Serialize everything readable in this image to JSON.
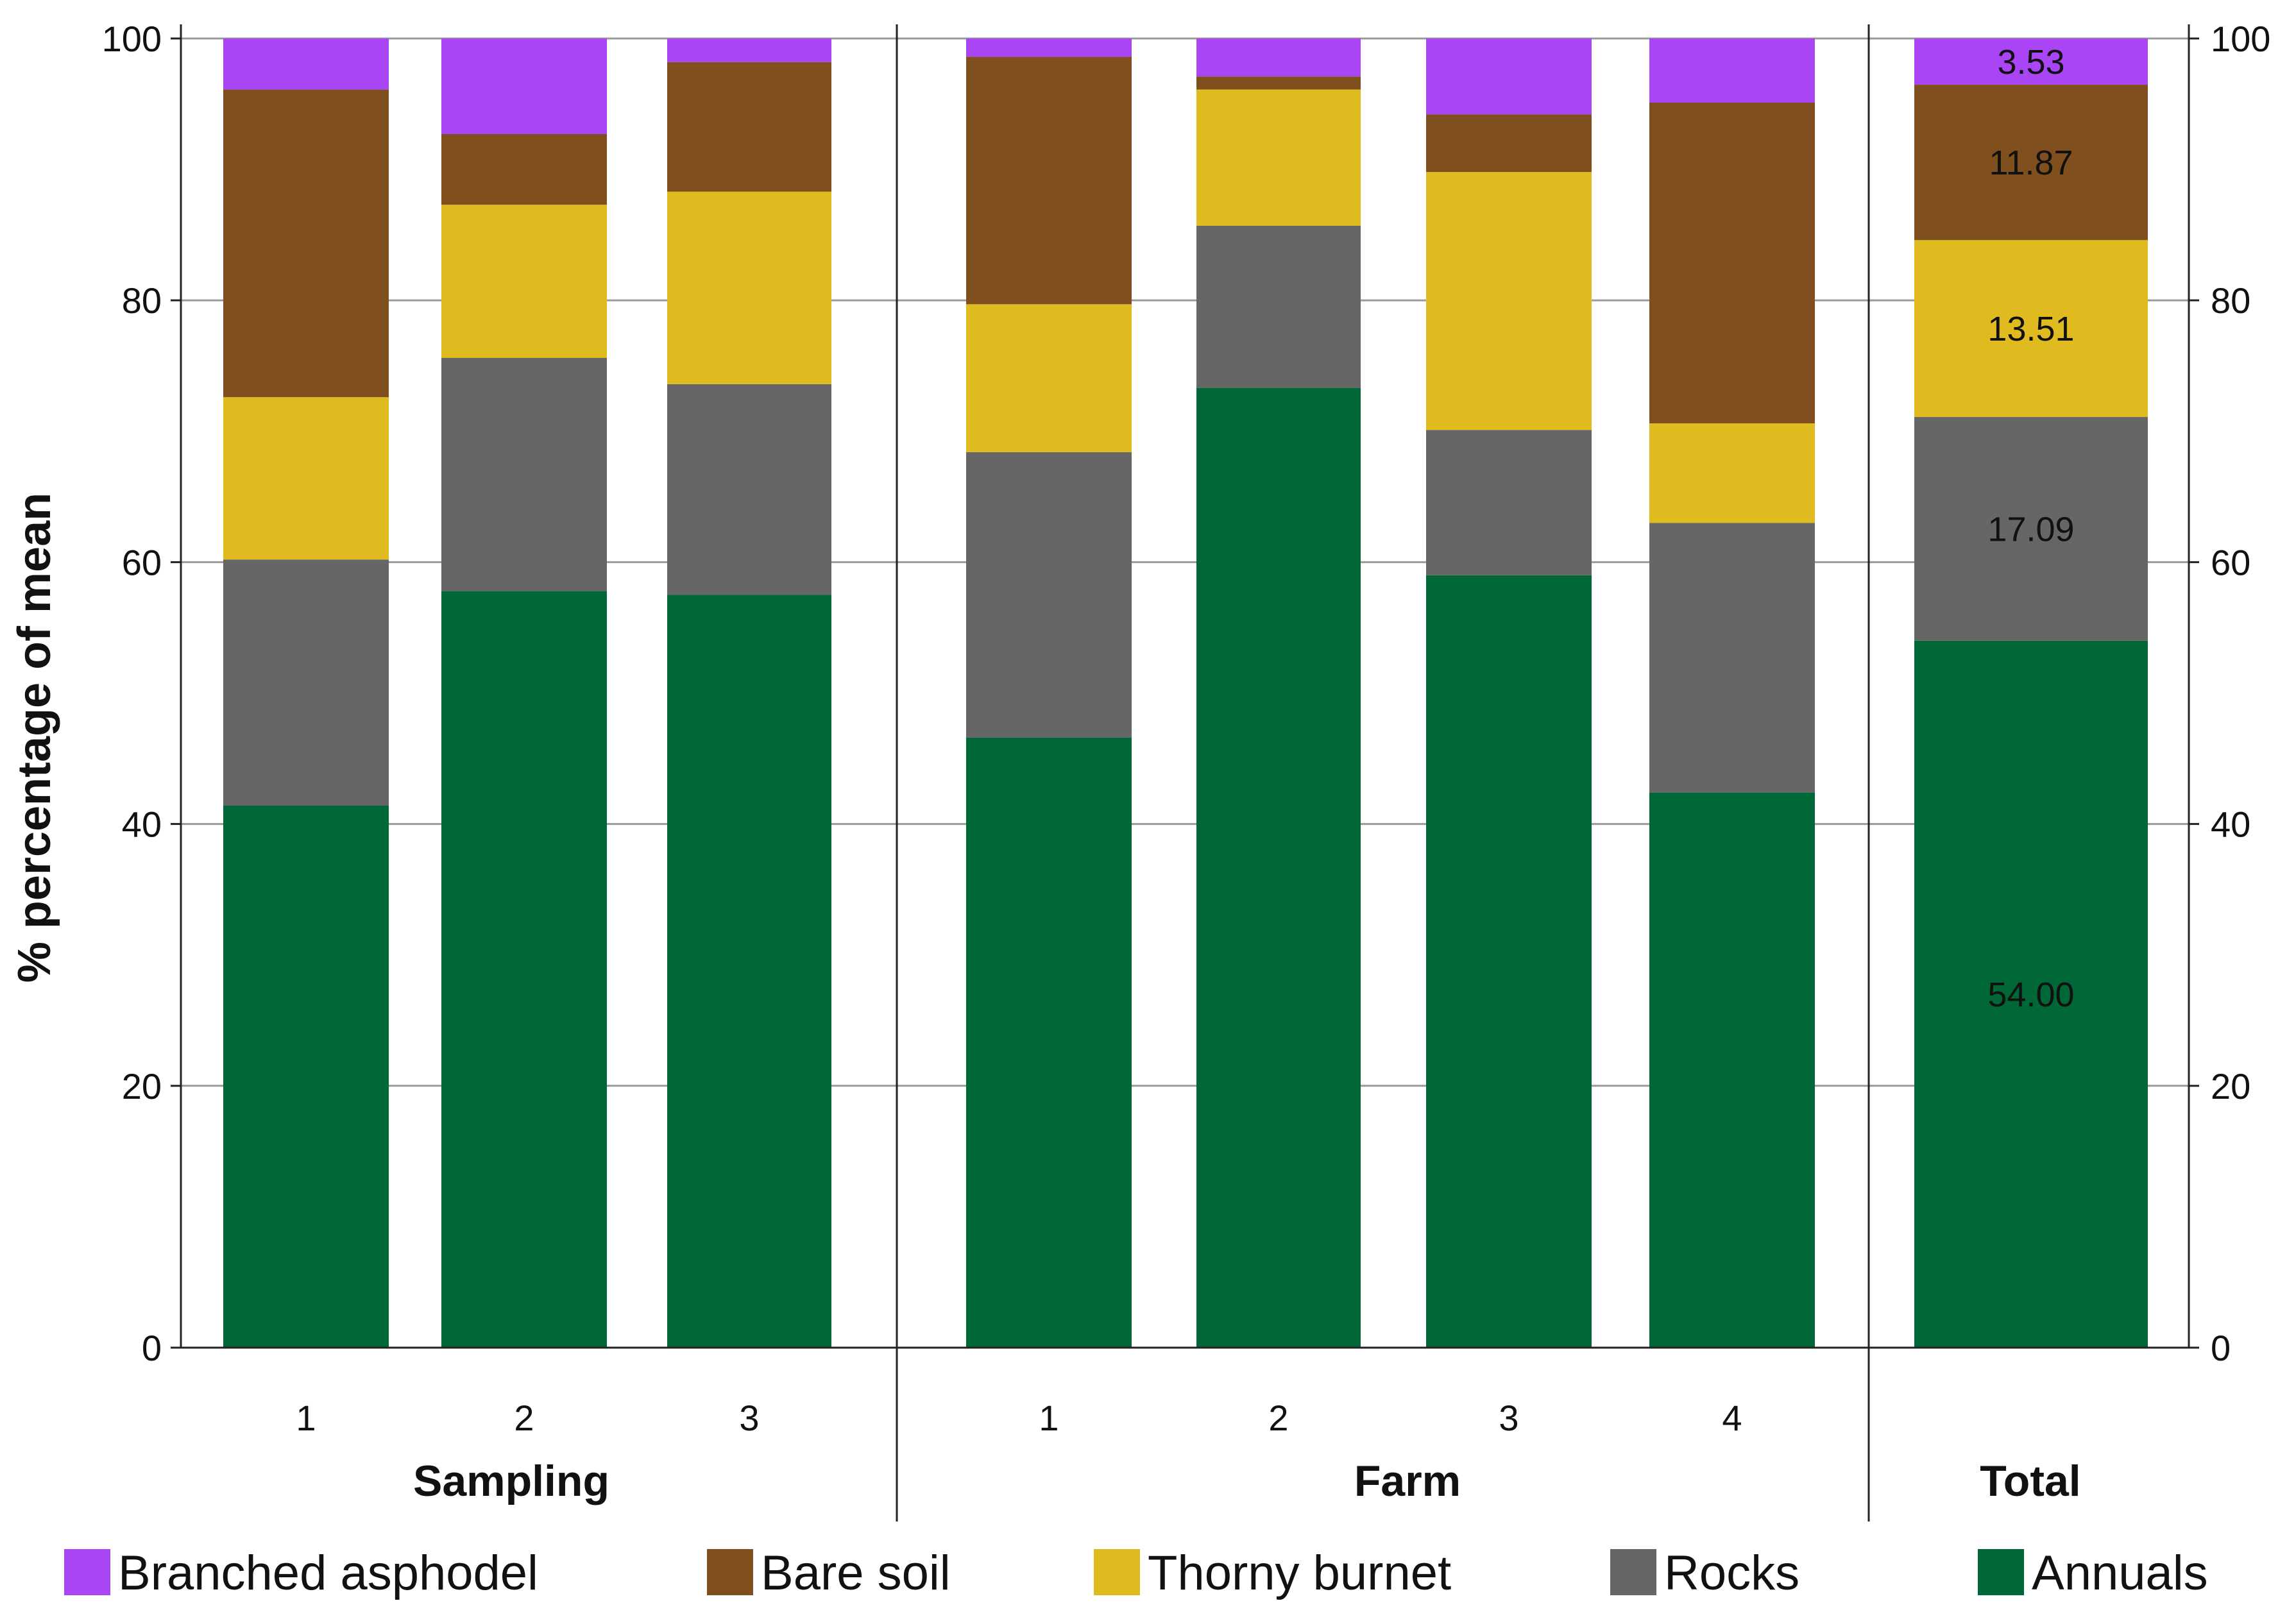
{
  "chart_data": {
    "type": "bar",
    "stacked": true,
    "ylabel": "% percentage of mean",
    "ylim": [
      0,
      100
    ],
    "y_ticks": [
      0,
      20,
      40,
      60,
      80,
      100
    ],
    "grid": true,
    "legend_position": "bottom",
    "groups": [
      {
        "name": "Sampling",
        "categories": [
          "1",
          "2",
          "3"
        ]
      },
      {
        "name": "Farm",
        "categories": [
          "1",
          "2",
          "3",
          "4"
        ]
      },
      {
        "name": "Total",
        "categories": [
          ""
        ]
      }
    ],
    "bars": [
      {
        "group": "Sampling",
        "category": "1"
      },
      {
        "group": "Sampling",
        "category": "2"
      },
      {
        "group": "Sampling",
        "category": "3"
      },
      {
        "group": "Farm",
        "category": "1"
      },
      {
        "group": "Farm",
        "category": "2"
      },
      {
        "group": "Farm",
        "category": "3"
      },
      {
        "group": "Farm",
        "category": "4"
      },
      {
        "group": "Total",
        "category": ""
      }
    ],
    "series": [
      {
        "name": "Annuals",
        "color": "#006837",
        "values": [
          41.4,
          57.8,
          57.5,
          46.6,
          73.3,
          59.0,
          42.4,
          54.0
        ]
      },
      {
        "name": "Rocks",
        "color": "#666666",
        "values": [
          18.8,
          17.8,
          16.1,
          21.8,
          12.4,
          11.1,
          20.6,
          17.09
        ]
      },
      {
        "name": "Thorny burnet",
        "color": "#E0BB1F",
        "values": [
          12.4,
          11.7,
          14.7,
          11.3,
          10.4,
          19.7,
          7.6,
          13.51
        ]
      },
      {
        "name": "Bare soil",
        "color": "#7F4F1E",
        "values": [
          23.5,
          5.4,
          9.9,
          18.9,
          1.0,
          4.4,
          24.5,
          11.87
        ]
      },
      {
        "name": "Branched asphodel",
        "color": "#A945F5",
        "values": [
          3.9,
          7.3,
          1.8,
          1.4,
          2.9,
          5.8,
          4.9,
          3.53
        ]
      }
    ],
    "data_labels": {
      "bar_index": 7,
      "labels": [
        "54.00",
        "17.09",
        "13.51",
        "11.87",
        "3.53"
      ]
    },
    "legend_order": [
      "Branched asphodel",
      "Bare soil",
      "Thorny burnet",
      "Rocks",
      "Annuals"
    ]
  }
}
